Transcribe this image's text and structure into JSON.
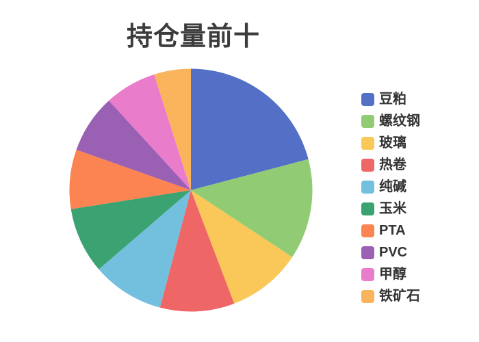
{
  "page": {
    "background_color": "#ffffff",
    "title_color": "#3c3c3c",
    "legend_text_color": "#333333"
  },
  "chart_data": {
    "type": "pie",
    "title": "持仓量前十",
    "labels": [
      "豆粕",
      "螺纹钢",
      "玻璃",
      "热卷",
      "纯碱",
      "玉米",
      "PTA",
      "PVC",
      "甲醇",
      "铁矿石"
    ],
    "values_percent": [
      20.9,
      13.4,
      9.9,
      9.9,
      9.6,
      8.8,
      7.9,
      7.8,
      6.9,
      4.9
    ],
    "colors": [
      "#5470C6",
      "#91CC75",
      "#FAC858",
      "#EE6666",
      "#73C0DE",
      "#3BA272",
      "#FC8452",
      "#9A60B4",
      "#EA7CCC",
      "#F9B45C"
    ],
    "start_angle_deg": 0,
    "direction": "clockwise",
    "legend_position": "right",
    "data_labels_visible": false
  }
}
